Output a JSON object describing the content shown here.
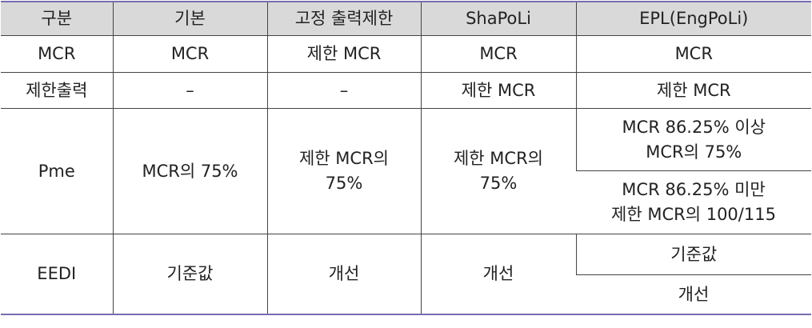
{
  "table": {
    "headers": [
      "구분",
      "기본",
      "고정 출력제한",
      "ShaPoLi",
      "EPL(EngPoLi)"
    ],
    "rows": {
      "mcr": {
        "label": "MCR",
        "basic": "MCR",
        "fixed_limit": "제한 MCR",
        "shapoli": "MCR",
        "epl": "MCR"
      },
      "limited_output": {
        "label": "제한출력",
        "basic": "–",
        "fixed_limit": "–",
        "shapoli": "제한 MCR",
        "epl": "제한 MCR"
      },
      "pme": {
        "label": "Pme",
        "basic": "MCR의 75%",
        "fixed_limit_line1": "제한 MCR의",
        "fixed_limit_line2": "75%",
        "shapoli_line1": "제한 MCR의",
        "shapoli_line2": "75%",
        "epl_a_line1": "MCR 86.25% 이상",
        "epl_a_line2": "MCR의 75%",
        "epl_b_line1": "MCR 86.25% 미만",
        "epl_b_line2": "제한 MCR의 100/115"
      },
      "eedi": {
        "label": "EEDI",
        "basic": "기준값",
        "fixed_limit": "개선",
        "shapoli": "개선",
        "epl_a": "기준값",
        "epl_b": "개선"
      }
    }
  }
}
